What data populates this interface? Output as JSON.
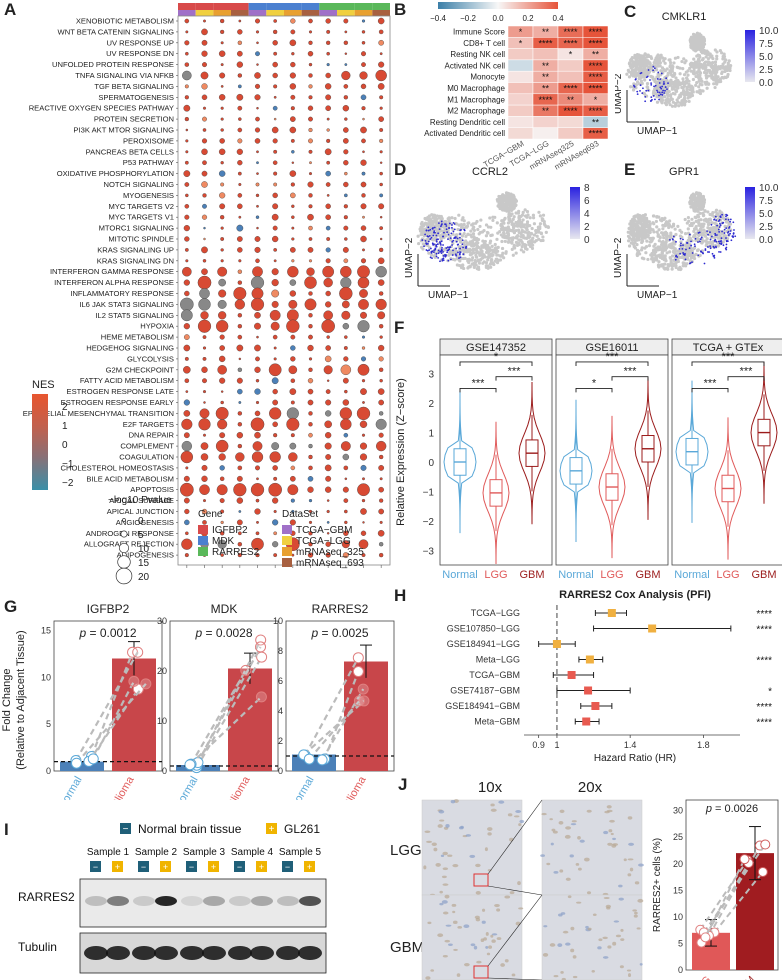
{
  "panel_labels": {
    "A": "A",
    "B": "B",
    "C": "C",
    "D": "D",
    "E": "E",
    "F": "F",
    "G": "G",
    "H": "H",
    "I": "I",
    "J": "J"
  },
  "colors": {
    "red": "#d84a33",
    "orange": "#ef8a62",
    "gray": "#888888",
    "blue": "#4b80b8",
    "teal": "#3a8fa0",
    "umap_gray": "#c8c8c8",
    "umap_blue": "#2d2ad0",
    "normal": "#5aa8d8",
    "lgg": "#e05a5a",
    "gbm": "#9b1b1b",
    "hm_red": "#e6543a",
    "hm_blue": "#4b8fb0"
  },
  "panelA": {
    "pathways": [
      "XENOBIOTIC METABOLISM",
      "WNT BETA CATENIN SIGNALING",
      "UV RESPONSE UP",
      "UV RESPONSE DN",
      "UNFOLDED PROTEIN RESPONSE",
      "TNFA SIGNALING VIA NFKB",
      "TGF BETA SIGNALING",
      "SPERMATOGENESIS",
      "REACTIVE OXYGEN SPECIES PATHWAY",
      "PROTEIN SECRETION",
      "PI3K AKT MTOR SIGNALING",
      "PEROXISOME",
      "PANCREAS BETA CELLS",
      "P53 PATHWAY",
      "OXIDATIVE PHOSPHORYLATION",
      "NOTCH SIGNALING",
      "MYOGENESIS",
      "MYC TARGETS V2",
      "MYC TARGETS V1",
      "MTORC1 SIGNALING",
      "MITOTIC SPINDLE",
      "KRAS SIGNALING UP",
      "KRAS SIGNALING DN",
      "INTERFERON GAMMA RESPONSE",
      "INTERFERON ALPHA RESPONSE",
      "INFLAMMATORY RESPONSE",
      "IL6 JAK STAT3 SIGNALING",
      "IL2 STAT5 SIGNALING",
      "HYPOXIA",
      "HEME METABOLISM",
      "HEDGEHOG SIGNALING",
      "GLYCOLYSIS",
      "G2M CHECKPOINT",
      "FATTY ACID METABOLISM",
      "ESTROGEN RESPONSE LATE",
      "ESTROGEN RESPONSE EARLY",
      "EPITHELIAL MESENCHYMAL TRANSITION",
      "E2F TARGETS",
      "DNA REPAIR",
      "COMPLEMENT",
      "COAGULATION",
      "CHOLESTEROL HOMEOSTASIS",
      "BILE ACID METABOLISM",
      "APOPTOSIS",
      "APICAL SURFACE",
      "APICAL JUNCTION",
      "ANGIOGENESIS",
      "ANDROGEN RESPONSE",
      "ALLOGRAFT REJECTION",
      "ADIPOGENESIS"
    ],
    "ncols": 12,
    "gene_bar": [
      "#d84a4a",
      "#d84a4a",
      "#d84a4a",
      "#d84a4a",
      "#4b80d0",
      "#4b80d0",
      "#4b80d0",
      "#4b80d0",
      "#5ab85a",
      "#5ab85a",
      "#5ab85a",
      "#5ab85a"
    ],
    "dataset_bar": [
      "#a070c8",
      "#f0d040",
      "#e8a030",
      "#a86040",
      "#a070c8",
      "#f0d040",
      "#e8a030",
      "#a86040",
      "#a070c8",
      "#f0d040",
      "#e8a030",
      "#a86040"
    ],
    "legend": {
      "nes_title": "NES",
      "nes_ticks": [
        "2",
        "1",
        "0",
        "−1",
        "−2"
      ],
      "pval_title": "−log10 Pvalue",
      "pval_ticks": [
        "0",
        "5",
        "10",
        "15",
        "20"
      ],
      "gene_title": "Gene",
      "genes": [
        "IGFBP2",
        "MDK",
        "RARRES2"
      ],
      "gene_colors": [
        "#d84a4a",
        "#4b80d0",
        "#5ab85a"
      ],
      "dataset_title": "DataSet",
      "datasets": [
        "TCGA−GBM",
        "TCGA−LGG",
        "mRNAseq_325",
        "mRNAseq_693"
      ],
      "dataset_colors": [
        "#a070c8",
        "#f0d040",
        "#e8a030",
        "#a86040"
      ]
    }
  },
  "panelB": {
    "rows": [
      "Immune Score",
      "CD8+ T cell",
      "Resting NK cell",
      "Activated NK cell",
      "Monocyte",
      "M0 Macrophage",
      "M1 Macrophage",
      "M2 Macrophage",
      "Resting Dendritic cell",
      "Activated Dendritic cell"
    ],
    "cols": [
      "TCGA−GBM",
      "TCGA−LGG",
      "mRNAseq325",
      "mRNAseq693"
    ],
    "values": [
      [
        0.25,
        0.2,
        0.38,
        0.45
      ],
      [
        0.15,
        0.42,
        0.4,
        0.45
      ],
      [
        0.12,
        0.15,
        0.05,
        0.2
      ],
      [
        -0.1,
        0.2,
        0.12,
        0.45
      ],
      [
        0.05,
        0.2,
        0.15,
        0.42
      ],
      [
        0.15,
        0.25,
        0.4,
        0.45
      ],
      [
        0.1,
        0.4,
        0.3,
        0.2
      ],
      [
        0.12,
        0.35,
        0.45,
        0.42
      ],
      [
        0.05,
        0.1,
        0.08,
        -0.15
      ],
      [
        0.08,
        0.02,
        0.12,
        0.42
      ]
    ],
    "stars": [
      [
        "*",
        "**",
        "****",
        "****"
      ],
      [
        "*",
        "****",
        "****",
        "****"
      ],
      [
        "",
        "",
        "*",
        "**"
      ],
      [
        "",
        "**",
        "",
        "****"
      ],
      [
        "",
        "**",
        "",
        "****"
      ],
      [
        "",
        "**",
        "****",
        "****"
      ],
      [
        "",
        "****",
        "**",
        "*"
      ],
      [
        "",
        "**",
        "****",
        "****"
      ],
      [
        "",
        "",
        "",
        "**"
      ],
      [
        "",
        "",
        "",
        "****"
      ]
    ],
    "scale_ticks": [
      "−0.4",
      "−0.2",
      "0.0",
      "0.2",
      "0.4"
    ]
  },
  "panelC": {
    "title": "CMKLR1",
    "ticks": [
      "10.0",
      "7.5",
      "5.0",
      "2.5",
      "0.0"
    ],
    "xlab": "UMAP−1",
    "ylab": "UMAP−2"
  },
  "panelD": {
    "title": "CCRL2",
    "ticks": [
      "8",
      "6",
      "4",
      "2",
      "0"
    ],
    "xlab": "UMAP−1",
    "ylab": "UMAP−2"
  },
  "panelE": {
    "title": "GPR1",
    "ticks": [
      "10.0",
      "7.5",
      "5.0",
      "2.5",
      "0.0"
    ],
    "xlab": "UMAP−1",
    "ylab": "UMAP−2"
  },
  "panelF": {
    "facets": [
      "GSE147352",
      "GSE16011",
      "TCGA + GTEx"
    ],
    "groups": [
      "Normal",
      "LGG",
      "GBM"
    ],
    "ylabel": "Relative Expression (Z−score)",
    "yticks": [
      "3",
      "2",
      "1",
      "0",
      "−1",
      "−2",
      "−3"
    ],
    "sig": [
      [
        "***",
        "***",
        "*"
      ],
      [
        "*",
        "***",
        "***"
      ],
      [
        "***",
        "***",
        "***"
      ]
    ]
  },
  "panelG": {
    "facets": [
      "IGFBP2",
      "MDK",
      "RARRES2"
    ],
    "pvalues": [
      "= 0.0012",
      "= 0.0028",
      "= 0.0025"
    ],
    "p_label": "p",
    "ylabel1": "Fold Change",
    "ylabel2": "(Relative to Adjacent Tissue)",
    "groups": [
      "Normal",
      "Glioma"
    ],
    "yticks_list": [
      [
        "0",
        "5",
        "10",
        "15"
      ],
      [
        "0",
        "10",
        "20",
        "30"
      ],
      [
        "0",
        "2",
        "4",
        "6",
        "8",
        "10"
      ]
    ],
    "normal_values": [
      1.0,
      1.2,
      1.1
    ],
    "glioma_values": [
      12.0,
      20.5,
      7.3
    ]
  },
  "panelH": {
    "title": "RARRES2 Cox Analysis (PFI)",
    "xlabel": "Hazard Ratio (HR)",
    "xticks": [
      "0.9",
      "1",
      "1.4",
      "1.8"
    ],
    "cohorts": [
      "TCGA−LGG",
      "GSE107850−LGG",
      "GSE184941−LGG",
      "Meta−LGG",
      "TCGA−GBM",
      "GSE74187−GBM",
      "GSE184941−GBM",
      "Meta−GBM"
    ],
    "hr": [
      1.3,
      1.52,
      1.0,
      1.18,
      1.08,
      1.17,
      1.21,
      1.16
    ],
    "lo": [
      1.21,
      1.2,
      0.9,
      1.12,
      0.98,
      1.0,
      1.13,
      1.1
    ],
    "hi": [
      1.38,
      1.95,
      1.1,
      1.25,
      1.2,
      1.4,
      1.3,
      1.23
    ],
    "stars": [
      "****",
      "****",
      "",
      "****",
      "",
      "*",
      "****",
      "****"
    ]
  },
  "panelI": {
    "legend": [
      "Normal brain tissue",
      "GL261"
    ],
    "samples": [
      "Sample 1",
      "Sample 2",
      "Sample 3",
      "Sample 4",
      "Sample 5"
    ],
    "bands": [
      "RARRES2",
      "Tubulin"
    ],
    "minus": "−",
    "plus": "+"
  },
  "panelJ": {
    "mags": [
      "10x",
      "20x"
    ],
    "rows": [
      "LGG",
      "GBM"
    ],
    "p_label": "p",
    "pvalue": "= 0.0026",
    "ylabel": "RARRES2+ cells (%)",
    "yticks": [
      "30",
      "25",
      "20",
      "15",
      "10",
      "5",
      "0"
    ],
    "groups": [
      "LGG",
      "GBM"
    ],
    "values": [
      7.0,
      22.0
    ]
  }
}
